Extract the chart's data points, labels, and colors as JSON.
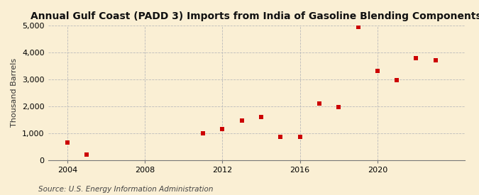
{
  "title": "Annual Gulf Coast (PADD 3) Imports from India of Gasoline Blending Components",
  "ylabel": "Thousand Barrels",
  "source": "Source: U.S. Energy Information Administration",
  "years": [
    2004,
    2005,
    2011,
    2012,
    2013,
    2014,
    2015,
    2016,
    2017,
    2018,
    2019,
    2020,
    2021,
    2022,
    2023
  ],
  "values": [
    650,
    200,
    1000,
    1150,
    1475,
    1600,
    850,
    850,
    2100,
    1975,
    4950,
    3300,
    2975,
    3775,
    3700
  ],
  "xlim": [
    2003.0,
    2024.5
  ],
  "ylim": [
    0,
    5000
  ],
  "yticks": [
    0,
    1000,
    2000,
    3000,
    4000,
    5000
  ],
  "xticks": [
    2004,
    2008,
    2012,
    2016,
    2020
  ],
  "marker_color": "#cc0000",
  "marker": "s",
  "marker_size": 4,
  "bg_color": "#faefd4",
  "grid_color": "#bbbbbb",
  "title_fontsize": 10,
  "label_fontsize": 8,
  "tick_fontsize": 8,
  "source_fontsize": 7.5
}
